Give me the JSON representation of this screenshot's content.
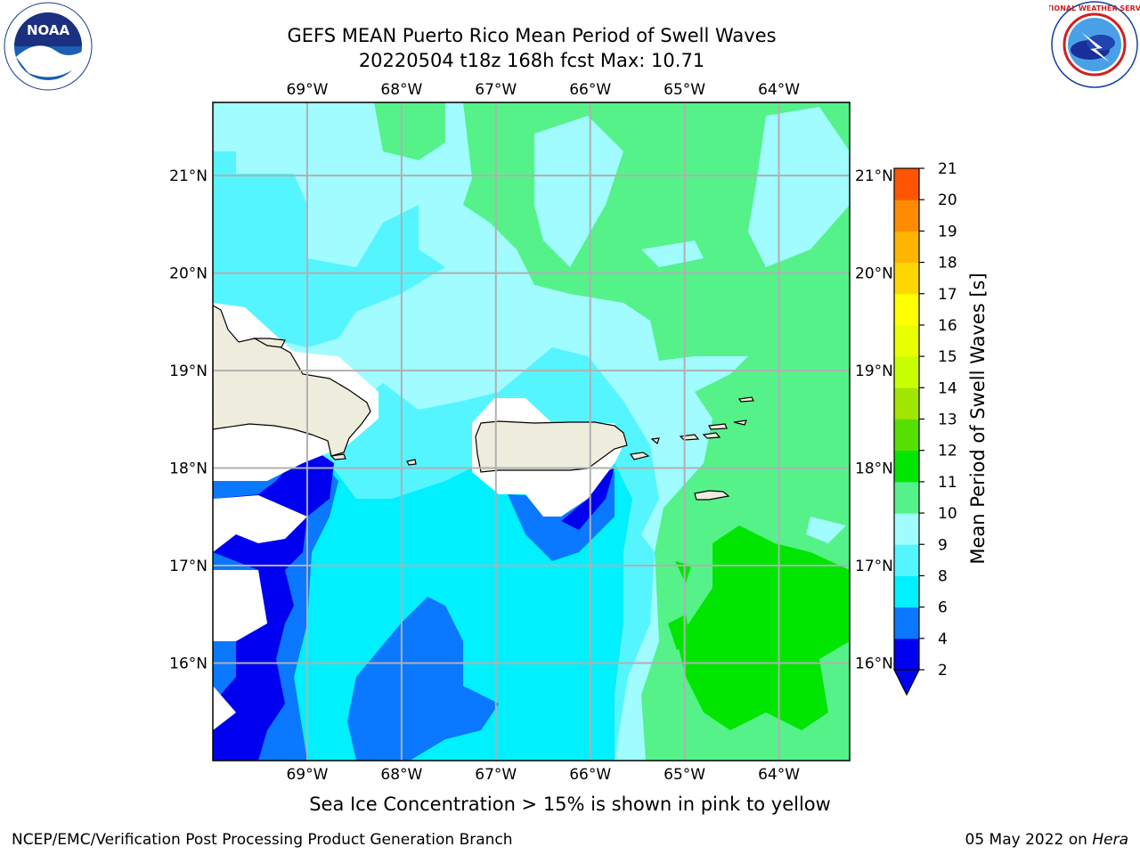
{
  "header": {
    "title_line1": "GEFS MEAN Puerto Rico Mean Period of Swell Waves",
    "title_line2": "20220504 t18z 168h fcst   Max: 10.71"
  },
  "logos": {
    "noaa_text": "NOAA",
    "noaa_ring_text": "NATIONAL OCEANIC AND ATMOSPHERIC ADMINISTRATION · U.S. DEPARTMENT OF COMMERCE",
    "nws_ring_text": "NATIONAL WEATHER SERVICE"
  },
  "map": {
    "lon_labels": [
      "69°W",
      "68°W",
      "67°W",
      "66°W",
      "65°W",
      "64°W"
    ],
    "lat_labels": [
      "21°N",
      "20°N",
      "19°N",
      "18°N",
      "17°N",
      "16°N"
    ],
    "lon_values": [
      -69,
      -68,
      -67,
      -66,
      -65,
      -64
    ],
    "lat_values": [
      21,
      20,
      19,
      18,
      17,
      16
    ],
    "extent": {
      "lon_min": -70.0,
      "lon_max": -63.25,
      "lat_min": 15.0,
      "lat_max": 21.75
    },
    "gridlines": true
  },
  "colorbar": {
    "label": "Mean Period of Swell Waves [s]",
    "tick_labels": [
      "2",
      "4",
      "6",
      "8",
      "9",
      "10",
      "11",
      "12",
      "13",
      "14",
      "15",
      "16",
      "17",
      "18",
      "19",
      "20",
      "21"
    ],
    "colors": [
      "#0000f0",
      "#0a78ff",
      "#00f0ff",
      "#55f5ff",
      "#a0fcff",
      "#55f28a",
      "#00e600",
      "#55e000",
      "#a0e600",
      "#c8ff00",
      "#e8ff00",
      "#ffff00",
      "#ffd700",
      "#ffb400",
      "#ff8c00",
      "#ff5500",
      "#ff2000",
      "#ff0000"
    ],
    "extend_min_color": "#0000f0"
  },
  "notes": {
    "sea_ice": "Sea Ice Concentration > 15% is shown in pink to yellow"
  },
  "footer": {
    "left": "NCEP/EMC/Verification Post Processing Product Generation Branch",
    "right_date": "05 May 2022 on ",
    "right_host": "Hera"
  },
  "colors": {
    "land": "#eeecdc",
    "grid": "#b0b0b0",
    "c2": "#0000f0",
    "c4": "#0a78ff",
    "c6": "#00f0ff",
    "c8": "#55f5ff",
    "c9": "#a0fcff",
    "c10": "#55f28a",
    "c11": "#00e600"
  }
}
